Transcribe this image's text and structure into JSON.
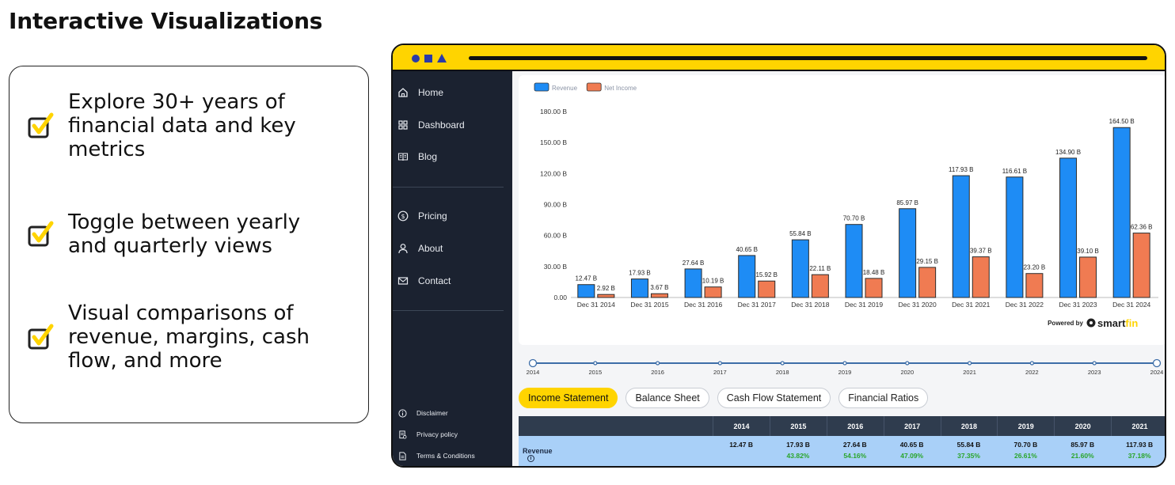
{
  "page": {
    "title": "Interactive Visualizations"
  },
  "features": [
    {
      "text": "Explore 30+ years of financial data and key metrics"
    },
    {
      "text": "Toggle between yearly and quarterly views"
    },
    {
      "text": "Visual comparisons of revenue, margins, cash flow, and more"
    }
  ],
  "colors": {
    "accent": "#ffd400",
    "revenue": "#1e8cf5",
    "net_income": "#f07b52",
    "sidebar": "#1b2230",
    "table_head": "#2f3c4e",
    "table_row": "#a9d0f8",
    "positive": "#2aa52a"
  },
  "sidebar": {
    "nav": [
      {
        "label": "Home",
        "icon": "home-icon"
      },
      {
        "label": "Dashboard",
        "icon": "grid-icon"
      },
      {
        "label": "Blog",
        "icon": "book-icon"
      },
      {
        "label": "Pricing",
        "icon": "dollar-icon"
      },
      {
        "label": "About",
        "icon": "user-icon"
      },
      {
        "label": "Contact",
        "icon": "mail-icon"
      }
    ],
    "footer": [
      {
        "label": "Disclaimer",
        "icon": "info-icon"
      },
      {
        "label": "Privacy policy",
        "icon": "document-icon"
      },
      {
        "label": "Terms & Conditions",
        "icon": "file-icon"
      }
    ]
  },
  "chart_data": {
    "type": "bar",
    "title": "",
    "xlabel": "",
    "ylabel": "",
    "categories": [
      "Dec 31 2014",
      "Dec 31 2015",
      "Dec 31 2016",
      "Dec 31 2017",
      "Dec 31 2018",
      "Dec 31 2019",
      "Dec 31 2020",
      "Dec 31 2021",
      "Dec 31 2022",
      "Dec 31 2023",
      "Dec 31 2024"
    ],
    "series": [
      {
        "name": "Revenue",
        "values": [
          12.47,
          17.93,
          27.64,
          40.65,
          55.84,
          70.7,
          85.97,
          117.93,
          116.61,
          134.9,
          164.5
        ],
        "labels": [
          "12.47 B",
          "17.93 B",
          "27.64 B",
          "40.65 B",
          "55.84 B",
          "70.70 B",
          "85.97 B",
          "117.93 B",
          "116.61 B",
          "134.90 B",
          "164.50 B"
        ]
      },
      {
        "name": "Net Income",
        "values": [
          2.92,
          3.67,
          10.19,
          15.92,
          22.11,
          18.48,
          29.15,
          39.37,
          23.2,
          39.1,
          62.36
        ],
        "labels": [
          "2.92 B",
          "3.67 B",
          "10.19 B",
          "15.92 B",
          "22.11 B",
          "18.48 B",
          "29.15 B",
          "39.37 B",
          "23.20 B",
          "39.10 B",
          "62.36 B"
        ]
      }
    ],
    "yticks": [
      "0.00",
      "30.00 B",
      "60.00 B",
      "90.00 B",
      "120.00 B",
      "150.00 B",
      "180.00 B"
    ],
    "ylim": [
      0,
      180
    ],
    "legend": "top-left",
    "grid": false,
    "credit": {
      "prefix": "Powered by",
      "brand": "smartfin"
    }
  },
  "timeline": {
    "years": [
      "2014",
      "2015",
      "2016",
      "2017",
      "2018",
      "2019",
      "2020",
      "2021",
      "2022",
      "2023",
      "2024"
    ]
  },
  "tabs": [
    {
      "label": "Income Statement",
      "active": true
    },
    {
      "label": "Balance Sheet",
      "active": false
    },
    {
      "label": "Cash Flow Statement",
      "active": false
    },
    {
      "label": "Financial Ratios",
      "active": false
    }
  ],
  "table": {
    "years": [
      "2014",
      "2015",
      "2016",
      "2017",
      "2018",
      "2019",
      "2020",
      "2021"
    ],
    "row": {
      "label": "Revenue",
      "values": [
        "12.47 B",
        "17.93 B",
        "27.64 B",
        "40.65 B",
        "55.84 B",
        "70.70 B",
        "85.97 B",
        "117.93 B"
      ],
      "growth": [
        "",
        "43.82%",
        "54.16%",
        "47.09%",
        "37.35%",
        "26.61%",
        "21.60%",
        "37.18%"
      ]
    }
  }
}
